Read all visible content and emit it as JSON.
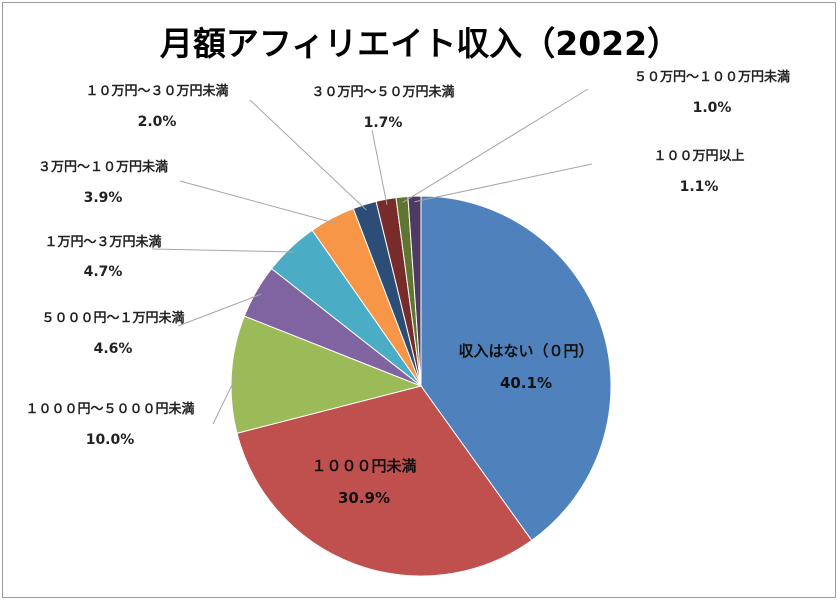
{
  "chart_data": {
    "type": "pie",
    "title": "月額アフィリエイト収入（2022）",
    "slices": [
      {
        "label": "収入はない（０円）",
        "value": 40.1,
        "display": "40.1%",
        "color": "#4f81bd"
      },
      {
        "label": "１０００円未満",
        "value": 30.9,
        "display": "30.9%",
        "color": "#c0504d"
      },
      {
        "label": "１０００円～５０００円未満",
        "value": 10.0,
        "display": "10.0%",
        "color": "#9bbb59"
      },
      {
        "label": "５０００円～１万円未満",
        "value": 4.6,
        "display": "4.6%",
        "color": "#8064a2"
      },
      {
        "label": "１万円～３万円未満",
        "value": 4.7,
        "display": "4.7%",
        "color": "#4bacc6"
      },
      {
        "label": "３万円～１０万円未満",
        "value": 3.9,
        "display": "3.9%",
        "color": "#f79646"
      },
      {
        "label": "１０万円～３０万円未満",
        "value": 2.0,
        "display": "2.0%",
        "color": "#2c4d75"
      },
      {
        "label": "３０万円～５０万円未満",
        "value": 1.7,
        "display": "1.7%",
        "color": "#772c2a"
      },
      {
        "label": "５０万円～１００万円未満",
        "value": 1.0,
        "display": "1.0%",
        "color": "#5f7530"
      },
      {
        "label": "１００万円以上",
        "value": 1.1,
        "display": "1.1%",
        "color": "#4d3b62"
      }
    ],
    "start_angle_deg": 0,
    "direction": "clockwise",
    "legend": "none"
  }
}
